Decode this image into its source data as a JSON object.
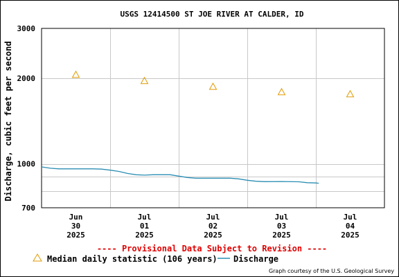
{
  "chart_data": {
    "type": "line",
    "title": "USGS 12414500 ST JOE RIVER AT CALDER, ID",
    "ylabel": "Discharge, cubic feet per second",
    "xlabel": "",
    "y_scale": "log",
    "ylim": [
      700,
      3000
    ],
    "y_ticks": [
      700,
      1000,
      2000,
      3000
    ],
    "y_tick_labels": [
      "700",
      "1000",
      "2000",
      "3000"
    ],
    "y_minor_gridlines": [
      800,
      900
    ],
    "grid": true,
    "xlim": [
      "2025-06-30T00:00",
      "2025-07-05T00:00"
    ],
    "x_ticks": [
      {
        "at": "2025-06-30T12:00",
        "lines": [
          "Jun",
          "30",
          "2025"
        ]
      },
      {
        "at": "2025-07-01T12:00",
        "lines": [
          "Jul",
          "01",
          "2025"
        ]
      },
      {
        "at": "2025-07-02T12:00",
        "lines": [
          "Jul",
          "02",
          "2025"
        ]
      },
      {
        "at": "2025-07-03T12:00",
        "lines": [
          "Jul",
          "03",
          "2025"
        ]
      },
      {
        "at": "2025-07-04T12:00",
        "lines": [
          "Jul",
          "04",
          "2025"
        ]
      }
    ],
    "x_gridlines": [
      "2025-07-01T00:00",
      "2025-07-02T00:00",
      "2025-07-03T00:00",
      "2025-07-04T00:00"
    ],
    "series": [
      {
        "name": "Discharge",
        "kind": "line",
        "color": "#2a8db3",
        "points": [
          [
            "2025-06-30T00:00",
            975
          ],
          [
            "2025-06-30T03:00",
            965
          ],
          [
            "2025-06-30T06:00",
            960
          ],
          [
            "2025-06-30T12:00",
            960
          ],
          [
            "2025-06-30T18:00",
            960
          ],
          [
            "2025-06-30T21:00",
            958
          ],
          [
            "2025-07-01T00:00",
            950
          ],
          [
            "2025-07-01T03:00",
            940
          ],
          [
            "2025-07-01T06:00",
            925
          ],
          [
            "2025-07-01T09:00",
            915
          ],
          [
            "2025-07-01T12:00",
            912
          ],
          [
            "2025-07-01T15:00",
            915
          ],
          [
            "2025-07-01T18:00",
            915
          ],
          [
            "2025-07-01T21:00",
            915
          ],
          [
            "2025-07-02T00:00",
            905
          ],
          [
            "2025-07-02T03:00",
            895
          ],
          [
            "2025-07-02T06:00",
            890
          ],
          [
            "2025-07-02T12:00",
            890
          ],
          [
            "2025-07-02T18:00",
            890
          ],
          [
            "2025-07-02T21:00",
            885
          ],
          [
            "2025-07-03T00:00",
            875
          ],
          [
            "2025-07-03T03:00",
            868
          ],
          [
            "2025-07-03T06:00",
            865
          ],
          [
            "2025-07-03T12:00",
            866
          ],
          [
            "2025-07-03T18:00",
            864
          ],
          [
            "2025-07-03T21:00",
            858
          ],
          [
            "2025-07-04T00:00",
            856
          ],
          [
            "2025-07-04T01:00",
            854
          ]
        ]
      },
      {
        "name": "Median daily statistic (106 years)",
        "kind": "marker",
        "marker": "triangle",
        "color": "#e09a00",
        "points": [
          [
            "2025-06-30T12:00",
            2060
          ],
          [
            "2025-07-01T12:00",
            1960
          ],
          [
            "2025-07-02T12:00",
            1870
          ],
          [
            "2025-07-03T12:00",
            1790
          ],
          [
            "2025-07-04T12:00",
            1760
          ]
        ]
      }
    ],
    "legend": "bottom",
    "provisional_note": "---- Provisional Data Subject to Revision ----",
    "credit": "Graph courtesy of the U.S. Geological Survey"
  }
}
